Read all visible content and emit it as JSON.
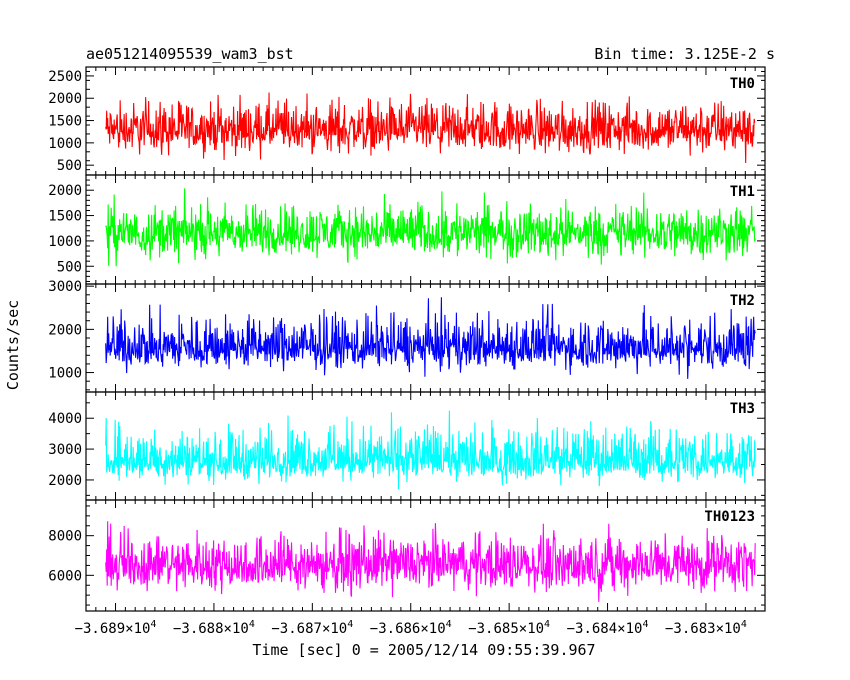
{
  "chart_data": {
    "type": "line",
    "title_left": "ae051214095539_wam3_bst",
    "title_right": "Bin time: 3.125E-2 s",
    "ylabel": "Counts/sec",
    "xlabel": "Time [sec] 0 = 2005/12/14 09:55:39.967",
    "xlim": [
      -36893,
      -36824
    ],
    "xticks": [
      {
        "value": -36890,
        "base": "−3.689×10",
        "exp": "4"
      },
      {
        "value": -36880,
        "base": "−3.688×10",
        "exp": "4"
      },
      {
        "value": -36870,
        "base": "−3.687×10",
        "exp": "4"
      },
      {
        "value": -36860,
        "base": "−3.686×10",
        "exp": "4"
      },
      {
        "value": -36850,
        "base": "−3.685×10",
        "exp": "4"
      },
      {
        "value": -36840,
        "base": "−3.684×10",
        "exp": "4"
      },
      {
        "value": -36830,
        "base": "−3.683×10",
        "exp": "4"
      }
    ],
    "x_range": [
      -36891,
      -36825
    ],
    "panels": [
      {
        "name": "TH0",
        "color": "#ff0000",
        "ylim": [
          280,
          2700
        ],
        "yticks": [
          500,
          1000,
          1500,
          2000,
          2500
        ],
        "mean": 1280,
        "min": 400,
        "max": 2500
      },
      {
        "name": "TH1",
        "color": "#00ff00",
        "ylim": [
          150,
          2300
        ],
        "yticks": [
          500,
          1000,
          1500,
          2000
        ],
        "mean": 1150,
        "min": 320,
        "max": 2200
      },
      {
        "name": "TH2",
        "color": "#0000ff",
        "ylim": [
          550,
          3050
        ],
        "yticks": [
          1000,
          2000,
          3000
        ],
        "mean": 1560,
        "min": 720,
        "max": 3000
      },
      {
        "name": "TH3",
        "color": "#00ffff",
        "ylim": [
          1350,
          4850
        ],
        "yticks": [
          2000,
          3000,
          4000
        ],
        "mean": 2600,
        "min": 1560,
        "max": 4800
      },
      {
        "name": "TH0123",
        "color": "#ff00ff",
        "ylim": [
          4200,
          9800
        ],
        "yticks": [
          6000,
          8000
        ],
        "mean": 6500,
        "min": 4300,
        "max": 9500
      }
    ]
  }
}
